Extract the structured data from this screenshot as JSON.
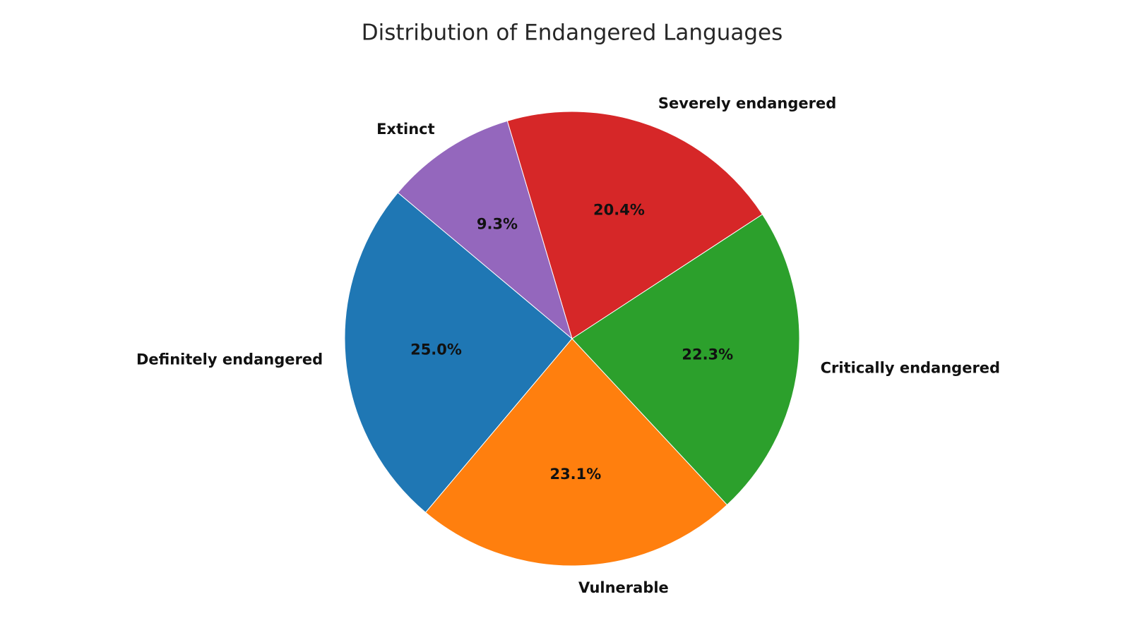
{
  "chart_data": {
    "type": "pie",
    "title": "Distribution of Endangered Languages",
    "start_angle_deg": 140,
    "direction": "counterclockwise",
    "categories": [
      "Definitely endangered",
      "Vulnerable",
      "Critically endangered",
      "Severely endangered",
      "Extinct"
    ],
    "values": [
      25.0,
      23.1,
      22.3,
      20.4,
      9.3
    ],
    "percent_labels": [
      "25.0%",
      "23.1%",
      "22.3%",
      "20.4%",
      "9.3%"
    ],
    "colors": [
      "#1f77b4",
      "#ff7f0e",
      "#2ca02c",
      "#d62728",
      "#9467bd"
    ]
  }
}
